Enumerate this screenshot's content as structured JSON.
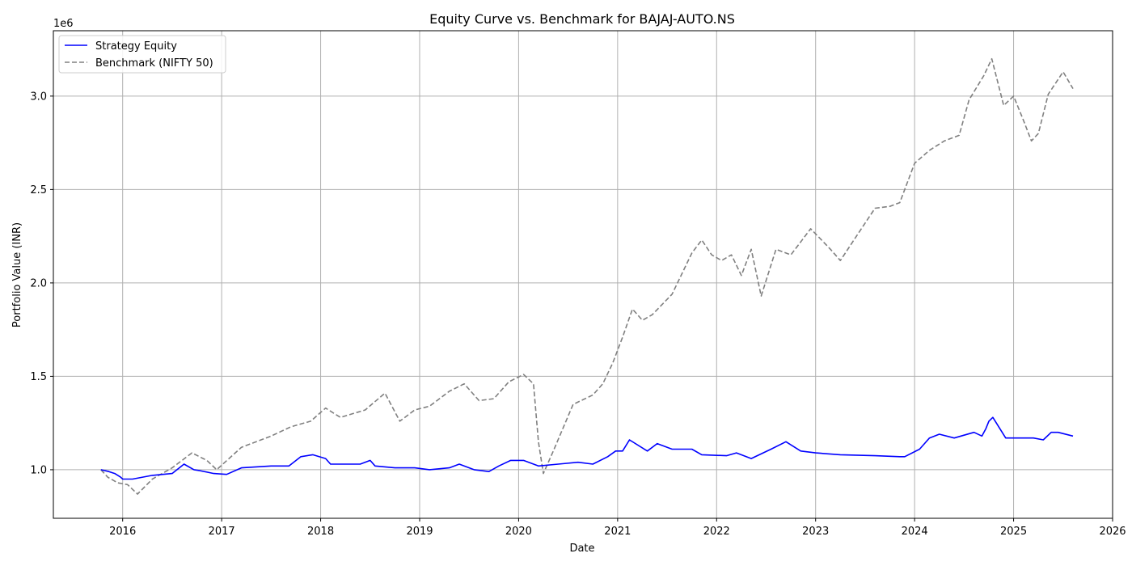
{
  "chart_data": {
    "type": "line",
    "title": "Equity Curve vs. Benchmark for BAJAJ-AUTO.NS",
    "xlabel": "Date",
    "ylabel": "Portfolio Value (INR)",
    "y_offset_text": "1e6",
    "xlim": [
      2015.3,
      2026.0
    ],
    "ylim": [
      740000,
      3350000
    ],
    "grid": true,
    "legend_position": "upper-left",
    "x_ticks": [
      "2016",
      "2017",
      "2018",
      "2019",
      "2020",
      "2021",
      "2022",
      "2023",
      "2024",
      "2025",
      "2026"
    ],
    "y_ticks": [
      "1.0",
      "1.5",
      "2.0",
      "2.5",
      "3.0"
    ],
    "series": [
      {
        "name": "Strategy Equity",
        "color": "#0000ff",
        "style": "solid",
        "x": [
          2015.78,
          2015.86,
          2015.92,
          2015.98,
          2016.0,
          2016.1,
          2016.3,
          2016.5,
          2016.62,
          2016.72,
          2016.78,
          2016.92,
          2017.05,
          2017.2,
          2017.5,
          2017.68,
          2017.8,
          2017.92,
          2018.05,
          2018.1,
          2018.4,
          2018.5,
          2018.55,
          2018.75,
          2018.95,
          2019.1,
          2019.3,
          2019.4,
          2019.55,
          2019.7,
          2019.8,
          2019.92,
          2020.05,
          2020.2,
          2020.4,
          2020.6,
          2020.75,
          2020.9,
          2020.98,
          2021.05,
          2021.12,
          2021.3,
          2021.4,
          2021.55,
          2021.75,
          2021.85,
          2022.1,
          2022.2,
          2022.35,
          2022.55,
          2022.7,
          2022.85,
          2023.0,
          2023.25,
          2023.6,
          2023.85,
          2023.9,
          2024.05,
          2024.15,
          2024.25,
          2024.4,
          2024.6,
          2024.68,
          2024.72,
          2024.75,
          2024.79,
          2024.92,
          2025.2,
          2025.3,
          2025.38,
          2025.45,
          2025.6
        ],
        "y": [
          1000000,
          990000,
          980000,
          960000,
          950000,
          950000,
          970000,
          980000,
          1030000,
          1000000,
          995000,
          980000,
          975000,
          1010000,
          1020000,
          1020000,
          1070000,
          1080000,
          1060000,
          1030000,
          1030000,
          1050000,
          1020000,
          1010000,
          1010000,
          1000000,
          1010000,
          1030000,
          1000000,
          990000,
          1020000,
          1050000,
          1050000,
          1020000,
          1030000,
          1040000,
          1030000,
          1070000,
          1100000,
          1100000,
          1160000,
          1100000,
          1140000,
          1110000,
          1110000,
          1080000,
          1075000,
          1090000,
          1060000,
          1110000,
          1150000,
          1100000,
          1090000,
          1080000,
          1075000,
          1070000,
          1070000,
          1110000,
          1170000,
          1190000,
          1170000,
          1200000,
          1180000,
          1220000,
          1260000,
          1280000,
          1170000,
          1170000,
          1160000,
          1200000,
          1200000,
          1180000
        ]
      },
      {
        "name": "Benchmark (NIFTY 50)",
        "color": "#808080",
        "style": "dashed",
        "x": [
          2015.78,
          2015.85,
          2015.95,
          2016.05,
          2016.15,
          2016.3,
          2016.5,
          2016.7,
          2016.85,
          2016.95,
          2017.2,
          2017.5,
          2017.7,
          2017.9,
          2018.05,
          2018.2,
          2018.45,
          2018.65,
          2018.8,
          2018.95,
          2019.1,
          2019.3,
          2019.45,
          2019.6,
          2019.75,
          2019.9,
          2020.05,
          2020.15,
          2020.2,
          2020.25,
          2020.35,
          2020.55,
          2020.75,
          2020.85,
          2020.95,
          2021.05,
          2021.15,
          2021.25,
          2021.35,
          2021.55,
          2021.75,
          2021.85,
          2021.95,
          2022.05,
          2022.15,
          2022.25,
          2022.35,
          2022.45,
          2022.6,
          2022.75,
          2022.95,
          2023.15,
          2023.25,
          2023.45,
          2023.6,
          2023.75,
          2023.85,
          2024.0,
          2024.15,
          2024.3,
          2024.45,
          2024.55,
          2024.7,
          2024.78,
          2024.9,
          2025.0,
          2025.1,
          2025.18,
          2025.25,
          2025.35,
          2025.5,
          2025.6
        ],
        "y": [
          1000000,
          960000,
          930000,
          920000,
          870000,
          950000,
          1010000,
          1090000,
          1050000,
          1000000,
          1120000,
          1180000,
          1230000,
          1260000,
          1330000,
          1280000,
          1320000,
          1410000,
          1260000,
          1320000,
          1340000,
          1420000,
          1460000,
          1370000,
          1380000,
          1470000,
          1510000,
          1460000,
          1150000,
          980000,
          1100000,
          1350000,
          1400000,
          1460000,
          1570000,
          1710000,
          1860000,
          1800000,
          1830000,
          1940000,
          2160000,
          2230000,
          2150000,
          2120000,
          2150000,
          2040000,
          2180000,
          1930000,
          2180000,
          2150000,
          2290000,
          2180000,
          2120000,
          2280000,
          2400000,
          2410000,
          2430000,
          2640000,
          2710000,
          2760000,
          2790000,
          2980000,
          3110000,
          3200000,
          2950000,
          3000000,
          2870000,
          2760000,
          2800000,
          3010000,
          3130000,
          3040000
        ]
      }
    ]
  }
}
